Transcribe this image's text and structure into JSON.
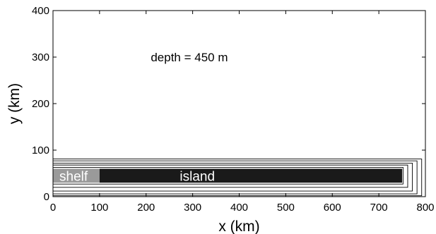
{
  "chart_data": {
    "type": "line",
    "xlabel": "x (km)",
    "ylabel": "y (km)",
    "xlim": [
      0,
      800
    ],
    "ylim": [
      0,
      400
    ],
    "xticks": [
      0,
      100,
      200,
      300,
      400,
      500,
      600,
      700,
      800
    ],
    "yticks": [
      0,
      100,
      200,
      300,
      400
    ],
    "grid": false,
    "annotation": {
      "text": "depth = 450 m",
      "x": 210,
      "y": 300
    },
    "regions": [
      {
        "label": "shelf",
        "x0": 0,
        "x1": 100,
        "y0": 30,
        "y1": 60,
        "color": "#9a9a9a"
      },
      {
        "label": "island",
        "x0": 100,
        "x1": 750,
        "y0": 30,
        "y1": 60,
        "color": "#1a1a1a"
      }
    ],
    "contours": [
      {
        "x_max": 752,
        "y_min": 27,
        "y_max": 63
      },
      {
        "x_max": 762,
        "y_min": 20,
        "y_max": 68
      },
      {
        "x_max": 772,
        "y_min": 12,
        "y_max": 72
      },
      {
        "x_max": 782,
        "y_min": 6,
        "y_max": 77
      },
      {
        "x_max": 792,
        "y_min": 2,
        "y_max": 81
      }
    ]
  }
}
